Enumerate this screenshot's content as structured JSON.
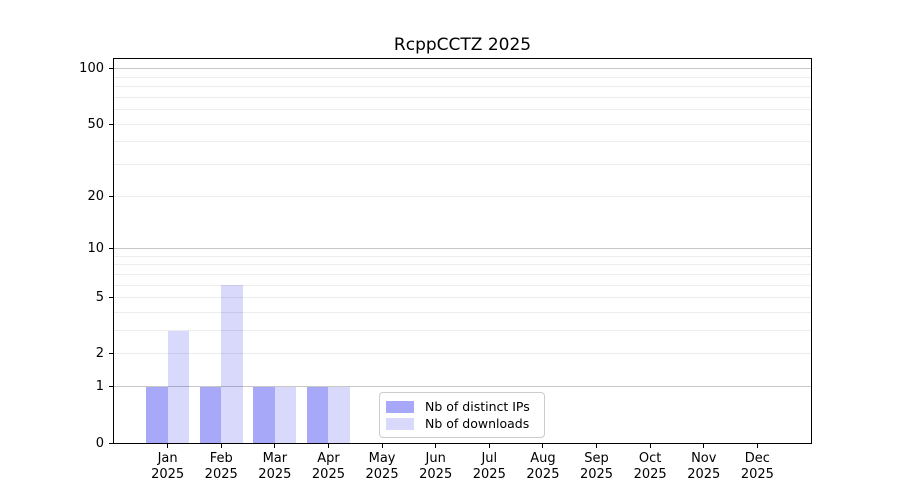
{
  "title": "RcppCCTZ 2025",
  "chart_data": {
    "type": "bar",
    "title": "RcppCCTZ 2025",
    "x_months": [
      "Jan",
      "Feb",
      "Mar",
      "Apr",
      "May",
      "Jun",
      "Jul",
      "Aug",
      "Sep",
      "Oct",
      "Nov",
      "Dec"
    ],
    "x_year": "2025",
    "series": [
      {
        "name": "Nb of distinct IPs",
        "color": "rgba(0,0,238,0.34)",
        "values": [
          1,
          1,
          1,
          1,
          0,
          0,
          0,
          0,
          0,
          0,
          0,
          0
        ]
      },
      {
        "name": "Nb of downloads",
        "color": "rgba(0,0,238,0.15)",
        "values": [
          3,
          6,
          1,
          1,
          0,
          0,
          0,
          0,
          0,
          0,
          0,
          0
        ]
      }
    ],
    "yscale": "log1p",
    "ylim": [
      0,
      113
    ],
    "y_ticks": [
      0,
      1,
      2,
      5,
      10,
      20,
      50,
      100
    ],
    "y_minor_grid": [
      3,
      4,
      6,
      7,
      8,
      9,
      30,
      40,
      60,
      70,
      80,
      90
    ],
    "y_major_grid_decades": [
      1,
      10,
      100
    ],
    "grid": true,
    "legend_position": "inside-bottom-center"
  }
}
